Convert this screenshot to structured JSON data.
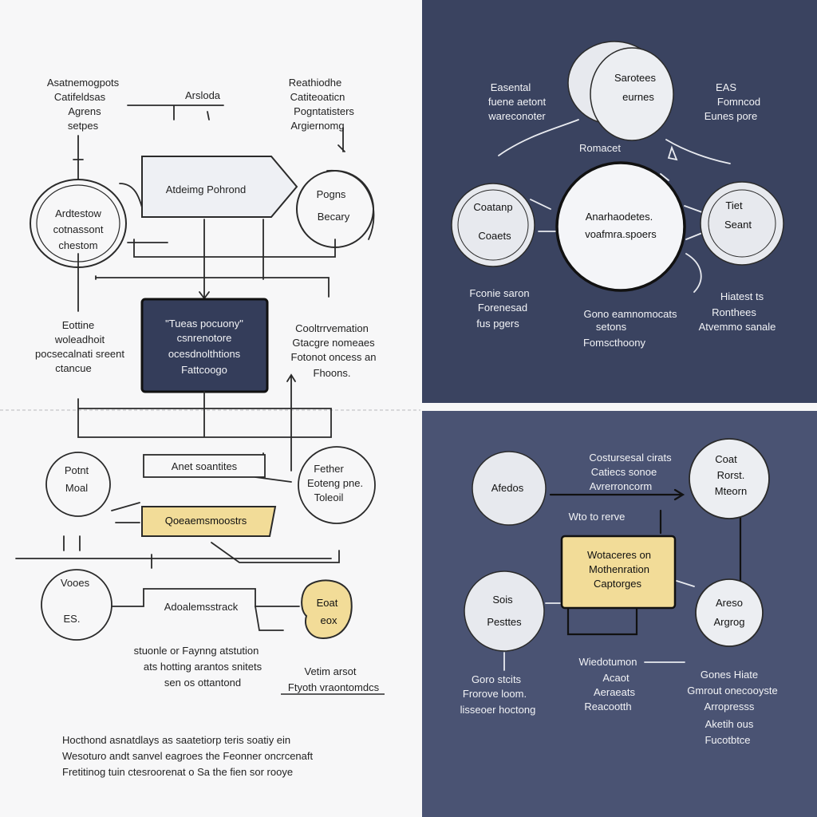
{
  "colors": {
    "paper": "#f7f7f8",
    "navy": "#3a4360",
    "navy_bottom": "#4a5373",
    "dark_box": "#343d5a",
    "yellow_box": "#f2dc98",
    "ink": "#2a2a2a"
  },
  "top_left": {
    "note_top_left": [
      "Asatnemogpots",
      "Catifeldsas",
      "Agrens",
      "setpes"
    ],
    "note_top_center": "Arsloda",
    "note_top_right": [
      "Reathiodhe",
      "Catiteoaticn",
      "Pogntatisters",
      "Argiernomg"
    ],
    "pentagon": "Atdeimg Pohrond",
    "circle_left": [
      "Ardtestow",
      "cotnassont",
      "chestom"
    ],
    "circle_right": [
      "Pogns",
      "Becary"
    ],
    "dark_box": [
      "\"Tueas pocuony\"",
      "csnrenotore",
      "ocesdnolthtions",
      "Fattcoogo"
    ],
    "note_mid_left": [
      "Eottine",
      "woleadhoit",
      "pocsecalnati sreent",
      "ctancue"
    ]
  },
  "top_right": {
    "note_tl": [
      "Easental",
      "fuene aetont",
      "wareconoter"
    ],
    "circle_top": [
      "Sarotees",
      "eurnes"
    ],
    "note_tr": [
      "EAS",
      "Fomncod",
      "Eunes pore"
    ],
    "label_ramacs": "Romacet",
    "center_circle": [
      "Anarhaodetes.",
      "voafmra.spoers"
    ],
    "circle_left": [
      "Coatanp",
      "Coaets"
    ],
    "circle_right": [
      "Tiet",
      "Seant"
    ],
    "note_bl": [
      "Fconie saron",
      "Forenesad",
      "fus pgers"
    ],
    "note_bc": [
      "Gono eamnomocats",
      "setons",
      "Fomscthoony"
    ],
    "note_br": [
      "Hiatest ts",
      "Ronthees",
      "Atvemmo sanale"
    ]
  },
  "bottom_left": {
    "note_center_right": [
      "Cooltrrvemation",
      "Gtacgre nomeaes",
      "Fotonot oncess an",
      "Fhoons."
    ],
    "circle_left": [
      "Potnt",
      "Moal"
    ],
    "box_plain": "Anet soantites",
    "circle_right": [
      "Fether",
      "Eoteng pne.",
      "Toleoil"
    ],
    "yellow_box": "Qoeaemsmoostrs",
    "circle_voces": [
      "Vooes",
      "ES."
    ],
    "label_adealem": "Adoalemsstrack",
    "yellow_blob": [
      "Eoat",
      "eox"
    ],
    "note_bottom": [
      "stuonle or Faynng atstution",
      "ats hotting arantos snitets",
      "sen os ottantond"
    ],
    "note_vetim": [
      "Vetim arsot",
      "Ftyoth vraontomdcs"
    ],
    "footer": [
      "Hocthond asnatdlays as saatetiorp teris soatiy ein",
      "Wesoturo andt sanvel eagroes the Feonner oncrcenaft",
      "Fretitinog tuin ctesroorenat o Sa the fien sor rooye"
    ]
  },
  "bottom_right": {
    "circle_left": "Afedos",
    "note_top": [
      "Costursesal cirats",
      "Catiecs sonoe",
      "Avrerroncorm"
    ],
    "circle_tr": [
      "Coat",
      "Rorst.",
      "Mteorn"
    ],
    "label_mid": "Wto to rerve",
    "yellow_box": [
      "Wotaceres on",
      "Mothenration",
      "Captorges"
    ],
    "circle_bl": [
      "Sois",
      "Pesttes"
    ],
    "circle_br": [
      "Areso",
      "Argrog"
    ],
    "note_center": [
      "Wiedotumon",
      "Acaot",
      "Aeraeats",
      "Reacootth"
    ],
    "note_left": [
      "Goro stcits",
      "Frorove loom.",
      "lisseoer hoctong"
    ],
    "note_right": [
      "Gones Hiate",
      "Gmrout onecooyste",
      "Arropresss",
      "Aketih ous",
      "Fucotbtce"
    ]
  }
}
